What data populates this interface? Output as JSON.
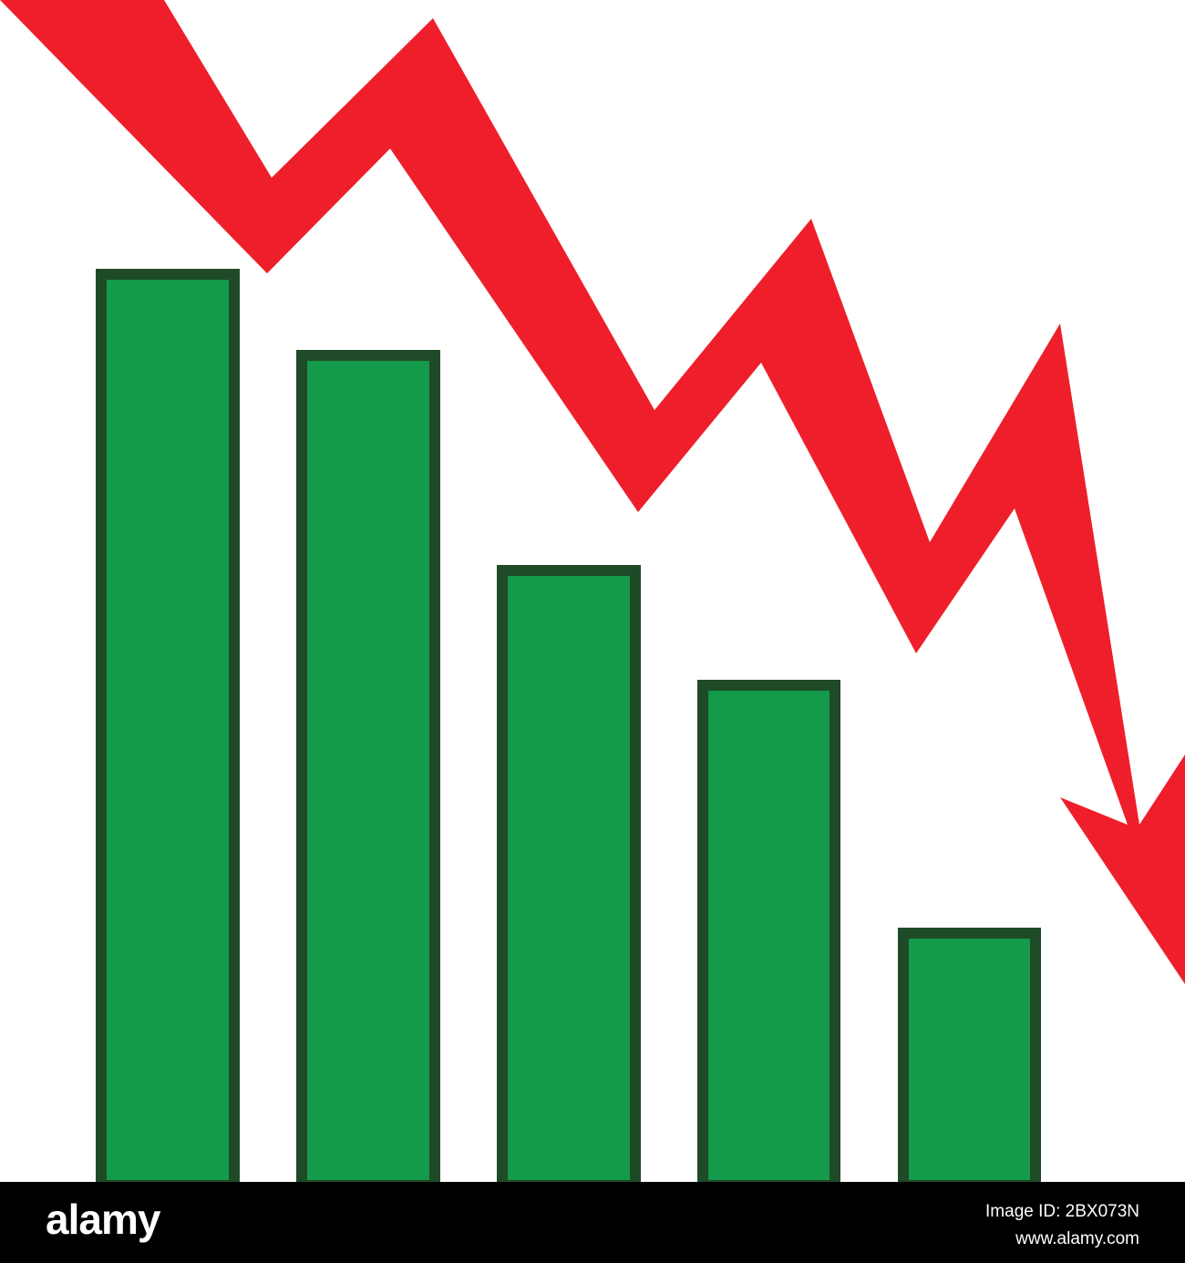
{
  "colors": {
    "arrow": "#ee1f2b",
    "bar_fill": "#139a4a",
    "bar_stroke": "#1f4a27",
    "footer_bg": "#000000"
  },
  "footer": {
    "logo": "alamy",
    "image_id": "Image ID: 2BX073N",
    "url": "www.alamy.com"
  }
}
